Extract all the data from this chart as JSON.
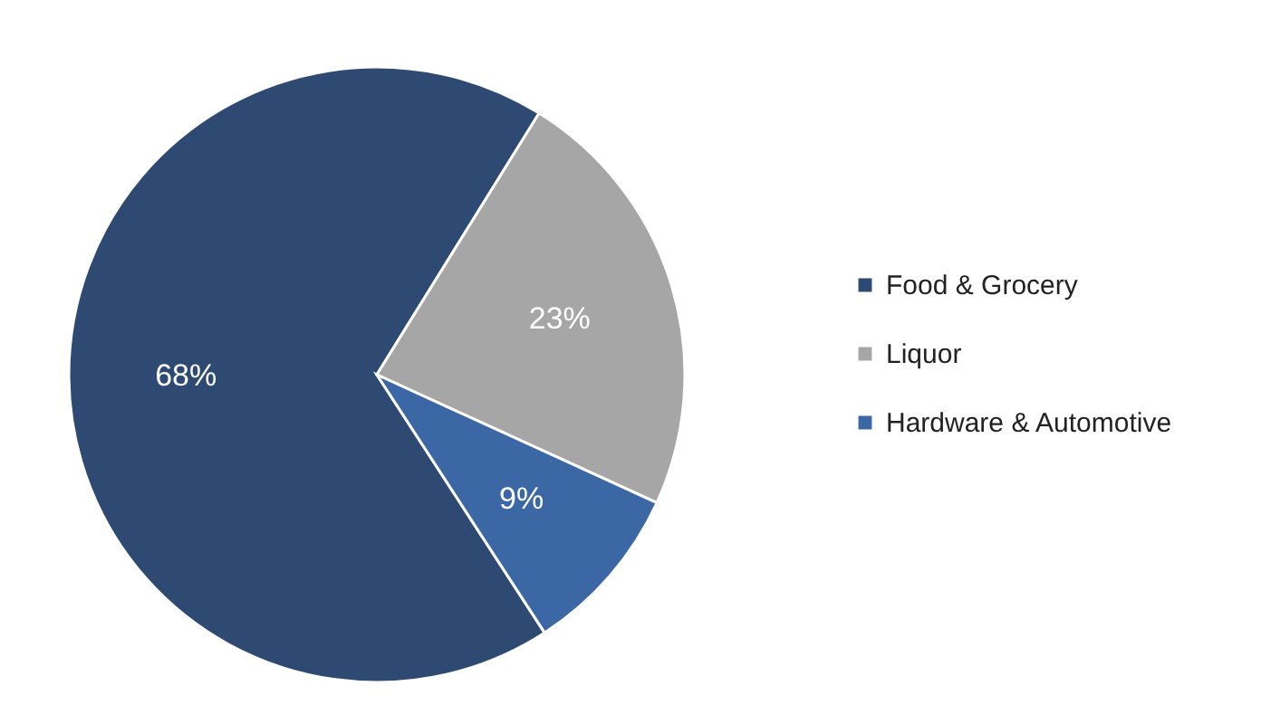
{
  "chart_data": {
    "type": "pie",
    "categories": [
      "Food & Grocery",
      "Liquor",
      "Hardware & Automotive"
    ],
    "values": [
      68,
      23,
      9
    ],
    "colors": [
      "#2e4a72",
      "#a6a6a6",
      "#3b68a5"
    ],
    "value_labels": [
      "68%",
      "23%",
      "9%"
    ],
    "legend": "right"
  }
}
